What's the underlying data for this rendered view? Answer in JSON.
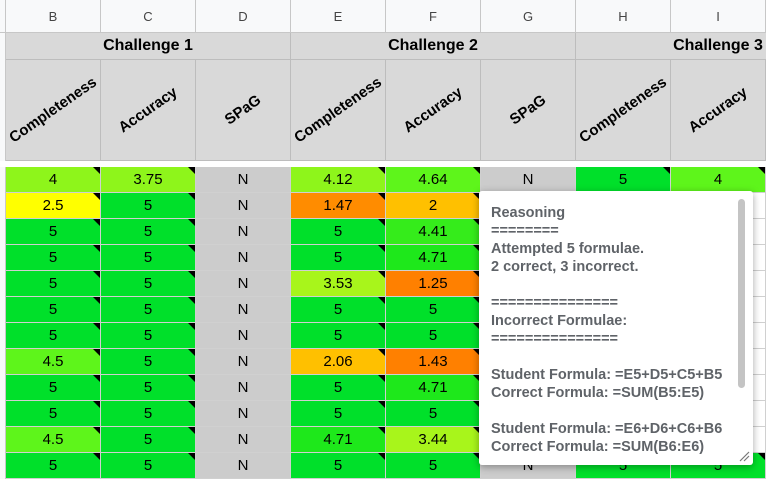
{
  "column_headers": [
    "B",
    "C",
    "D",
    "E",
    "F",
    "G",
    "H",
    "I"
  ],
  "challenges": [
    "Challenge 1",
    "Challenge 2",
    "Challenge 3"
  ],
  "subheaders": [
    "Completeness",
    "Accuracy",
    "SPaG",
    "Completeness",
    "Accuracy",
    "SPaG",
    "Completeness",
    "Accuracy"
  ],
  "rows": [
    [
      "4",
      "3.75",
      "N",
      "4.12",
      "4.64",
      "N",
      "5",
      "4"
    ],
    [
      "2.5",
      "5",
      "N",
      "1.47",
      "2",
      "",
      "",
      ""
    ],
    [
      "5",
      "5",
      "N",
      "5",
      "4.41",
      "",
      "",
      ""
    ],
    [
      "5",
      "5",
      "N",
      "5",
      "4.71",
      "",
      "",
      ""
    ],
    [
      "5",
      "5",
      "N",
      "3.53",
      "1.25",
      "",
      "",
      ""
    ],
    [
      "5",
      "5",
      "N",
      "5",
      "5",
      "",
      "",
      ""
    ],
    [
      "5",
      "5",
      "N",
      "5",
      "5",
      "",
      "",
      ""
    ],
    [
      "4.5",
      "5",
      "N",
      "2.06",
      "1.43",
      "",
      "",
      ""
    ],
    [
      "5",
      "5",
      "N",
      "5",
      "4.71",
      "",
      "",
      ""
    ],
    [
      "5",
      "5",
      "N",
      "5",
      "5",
      "",
      "",
      ""
    ],
    [
      "4.5",
      "5",
      "N",
      "4.71",
      "3.44",
      "",
      "",
      ""
    ],
    [
      "5",
      "5",
      "N",
      "5",
      "5",
      "N",
      "5",
      "5"
    ]
  ],
  "cell_colors": [
    [
      "#8ef51b",
      "#8ef51b",
      "#cccccc",
      "#8ef51b",
      "#5ef51b",
      "#cccccc",
      "#00e02a",
      "#5ef51b"
    ],
    [
      "#ffff00",
      "#00e02a",
      "#cccccc",
      "#ff8c00",
      "#ffc000",
      "",
      "",
      ""
    ],
    [
      "#00e02a",
      "#00e02a",
      "#cccccc",
      "#00e02a",
      "#35ec1b",
      "",
      "",
      ""
    ],
    [
      "#00e02a",
      "#00e02a",
      "#cccccc",
      "#00e02a",
      "#1ee81b",
      "",
      "",
      ""
    ],
    [
      "#00e02a",
      "#00e02a",
      "#cccccc",
      "#a8f51b",
      "#ff8000",
      "",
      "",
      ""
    ],
    [
      "#00e02a",
      "#00e02a",
      "#cccccc",
      "#00e02a",
      "#00e02a",
      "",
      "",
      ""
    ],
    [
      "#00e02a",
      "#00e02a",
      "#cccccc",
      "#00e02a",
      "#00e02a",
      "",
      "",
      ""
    ],
    [
      "#5ef51b",
      "#00e02a",
      "#cccccc",
      "#ffc000",
      "#ff8000",
      "",
      "",
      ""
    ],
    [
      "#00e02a",
      "#00e02a",
      "#cccccc",
      "#00e02a",
      "#1ee81b",
      "",
      "",
      ""
    ],
    [
      "#00e02a",
      "#00e02a",
      "#cccccc",
      "#00e02a",
      "#00e02a",
      "",
      "",
      ""
    ],
    [
      "#5ef51b",
      "#00e02a",
      "#cccccc",
      "#1ee81b",
      "#a8f51b",
      "",
      "",
      ""
    ],
    [
      "#00e02a",
      "#00e02a",
      "#cccccc",
      "#00e02a",
      "#00e02a",
      "#cccccc",
      "#00e02a",
      "#00e02a"
    ]
  ],
  "note": {
    "lines": [
      "Reasoning",
      "========",
      "Attempted 5 formulae.",
      "2 correct, 3 incorrect.",
      "",
      "===============",
      "Incorrect Formulae:",
      "===============",
      "",
      "Student Formula: =E5+D5+C5+B5",
      "Correct Formula: =SUM(B5:E5)",
      "",
      "Student Formula: =E6+D6+C6+B6",
      "Correct Formula: =SUM(B6:E6)"
    ]
  },
  "colors": {
    "header_bg": "#d9d9d9",
    "col_header_bg": "#f8f9fa",
    "note_text": "#5f6368",
    "selection_blue": "#1a73e8"
  }
}
